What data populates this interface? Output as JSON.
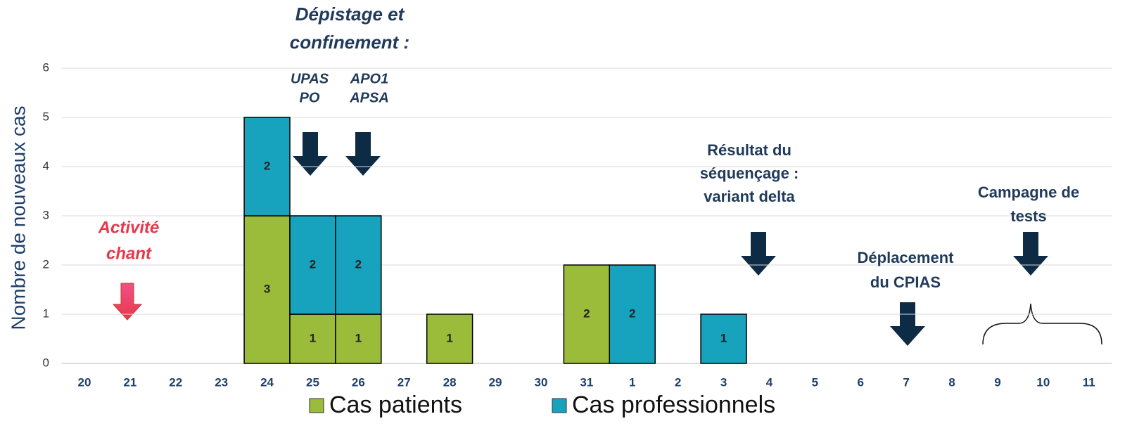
{
  "chart_data": {
    "type": "stacked_bar",
    "y_label": "Nombre de nouveaux cas",
    "categories": [
      "20",
      "21",
      "22",
      "23",
      "24",
      "25",
      "26",
      "27",
      "28",
      "29",
      "30",
      "31",
      "1",
      "2",
      "3",
      "4",
      "5",
      "6",
      "7",
      "8",
      "9",
      "10",
      "11"
    ],
    "series": [
      {
        "name": "Cas patients",
        "color": "#9bbb3b",
        "values": [
          0,
          0,
          0,
          0,
          3,
          1,
          1,
          0,
          1,
          0,
          0,
          2,
          0,
          0,
          0,
          0,
          0,
          0,
          0,
          0,
          0,
          0,
          0
        ]
      },
      {
        "name": "Cas professionnels",
        "color": "#17a2be",
        "values": [
          0,
          0,
          0,
          0,
          2,
          2,
          2,
          0,
          0,
          0,
          0,
          0,
          2,
          0,
          1,
          0,
          0,
          0,
          0,
          0,
          0,
          0,
          0
        ]
      }
    ],
    "ylim": [
      0,
      6
    ],
    "yticks": [
      0,
      1,
      2,
      3,
      4,
      5,
      6
    ],
    "grid": true,
    "annotations": [
      {
        "lines": [
          "Activité",
          "chant"
        ],
        "color": "#e8374a"
      },
      {
        "lines": [
          "Dépistage et",
          "confinement :"
        ],
        "color": "#1f3a5a"
      },
      {
        "lines": [
          "UPAS",
          "PO"
        ],
        "color": "#1f3a5a"
      },
      {
        "lines": [
          "APO1",
          "APSA"
        ],
        "color": "#1f3a5a"
      },
      {
        "lines": [
          "Résultat du",
          "séquençage :",
          "variant delta"
        ],
        "color": "#1f3a5a"
      },
      {
        "lines": [
          "Déplacement",
          "du CPIAS"
        ],
        "color": "#1f3a5a"
      },
      {
        "lines": [
          "Campagne de",
          "tests"
        ],
        "color": "#1f3a5a"
      }
    ]
  }
}
